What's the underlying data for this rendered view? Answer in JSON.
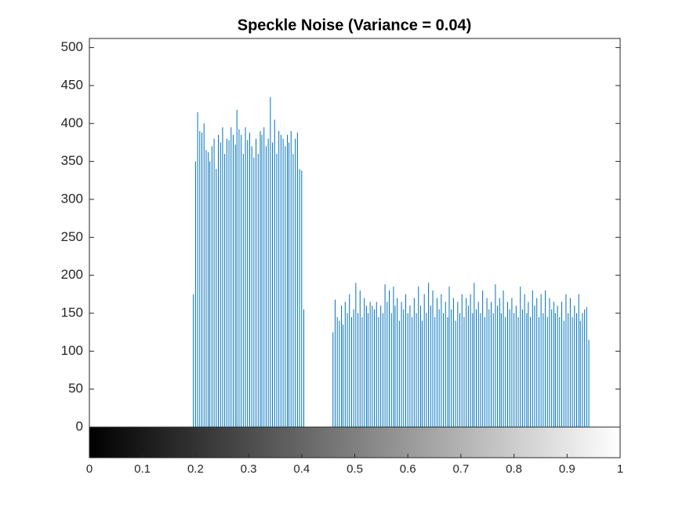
{
  "chart_data": {
    "type": "stem",
    "title": "Speckle Noise (Variance = 0.04)",
    "color": "#0072bd",
    "xlim": [
      0,
      1
    ],
    "xticks": [
      0,
      0.1,
      0.2,
      0.3,
      0.4,
      0.5,
      0.6,
      0.7,
      0.8,
      0.9,
      1
    ],
    "ylim": [
      0,
      512
    ],
    "yticks": [
      0,
      50,
      100,
      150,
      200,
      250,
      300,
      350,
      400,
      450,
      500
    ],
    "colorbar": true,
    "x": [
      0.196,
      0.2,
      0.204,
      0.208,
      0.212,
      0.216,
      0.22,
      0.224,
      0.227,
      0.231,
      0.235,
      0.239,
      0.243,
      0.247,
      0.251,
      0.255,
      0.259,
      0.263,
      0.267,
      0.271,
      0.275,
      0.278,
      0.282,
      0.286,
      0.29,
      0.294,
      0.298,
      0.302,
      0.306,
      0.31,
      0.314,
      0.318,
      0.322,
      0.325,
      0.329,
      0.333,
      0.337,
      0.341,
      0.345,
      0.349,
      0.353,
      0.357,
      0.361,
      0.365,
      0.369,
      0.373,
      0.376,
      0.38,
      0.384,
      0.388,
      0.392,
      0.396,
      0.4,
      0.404,
      0.459,
      0.463,
      0.467,
      0.471,
      0.475,
      0.478,
      0.482,
      0.486,
      0.49,
      0.494,
      0.498,
      0.502,
      0.506,
      0.51,
      0.514,
      0.518,
      0.522,
      0.525,
      0.529,
      0.533,
      0.537,
      0.541,
      0.545,
      0.549,
      0.553,
      0.557,
      0.561,
      0.565,
      0.569,
      0.573,
      0.576,
      0.58,
      0.584,
      0.588,
      0.592,
      0.596,
      0.6,
      0.604,
      0.608,
      0.612,
      0.616,
      0.62,
      0.624,
      0.627,
      0.631,
      0.635,
      0.639,
      0.643,
      0.647,
      0.651,
      0.655,
      0.659,
      0.663,
      0.667,
      0.671,
      0.675,
      0.678,
      0.682,
      0.686,
      0.69,
      0.694,
      0.698,
      0.702,
      0.706,
      0.71,
      0.714,
      0.718,
      0.722,
      0.725,
      0.729,
      0.733,
      0.737,
      0.741,
      0.745,
      0.749,
      0.753,
      0.757,
      0.761,
      0.765,
      0.769,
      0.773,
      0.776,
      0.78,
      0.784,
      0.788,
      0.792,
      0.796,
      0.8,
      0.804,
      0.808,
      0.812,
      0.816,
      0.82,
      0.824,
      0.827,
      0.831,
      0.835,
      0.839,
      0.843,
      0.847,
      0.851,
      0.855,
      0.859,
      0.863,
      0.867,
      0.871,
      0.875,
      0.878,
      0.882,
      0.886,
      0.89,
      0.894,
      0.898,
      0.902,
      0.906,
      0.91,
      0.914,
      0.918,
      0.922,
      0.925,
      0.929,
      0.933,
      0.937,
      0.941
    ],
    "values": [
      175,
      350,
      415,
      390,
      388,
      400,
      365,
      362,
      350,
      370,
      380,
      340,
      385,
      375,
      395,
      360,
      380,
      378,
      395,
      385,
      372,
      418,
      392,
      385,
      360,
      395,
      378,
      388,
      370,
      355,
      380,
      360,
      390,
      385,
      395,
      370,
      380,
      435,
      375,
      405,
      360,
      390,
      385,
      380,
      370,
      385,
      375,
      390,
      360,
      380,
      388,
      340,
      338,
      155,
      125,
      168,
      145,
      140,
      160,
      135,
      165,
      150,
      175,
      145,
      155,
      190,
      150,
      180,
      145,
      170,
      160,
      150,
      165,
      160,
      155,
      165,
      145,
      160,
      150,
      188,
      165,
      180,
      150,
      185,
      160,
      170,
      140,
      165,
      155,
      175,
      150,
      160,
      145,
      170,
      150,
      185,
      160,
      140,
      175,
      150,
      190,
      160,
      180,
      145,
      170,
      155,
      175,
      150,
      165,
      145,
      185,
      155,
      170,
      140,
      165,
      150,
      175,
      145,
      170,
      160,
      175,
      150,
      190,
      155,
      165,
      150,
      180,
      145,
      170,
      155,
      165,
      150,
      188,
      160,
      170,
      150,
      180,
      145,
      165,
      155,
      170,
      150,
      160,
      145,
      185,
      155,
      175,
      150,
      165,
      145,
      180,
      160,
      170,
      145,
      175,
      150,
      180,
      145,
      170,
      155,
      165,
      150,
      160,
      145,
      165,
      140,
      175,
      150,
      170,
      145,
      160,
      150,
      175,
      140,
      150,
      155,
      158,
      115
    ]
  }
}
